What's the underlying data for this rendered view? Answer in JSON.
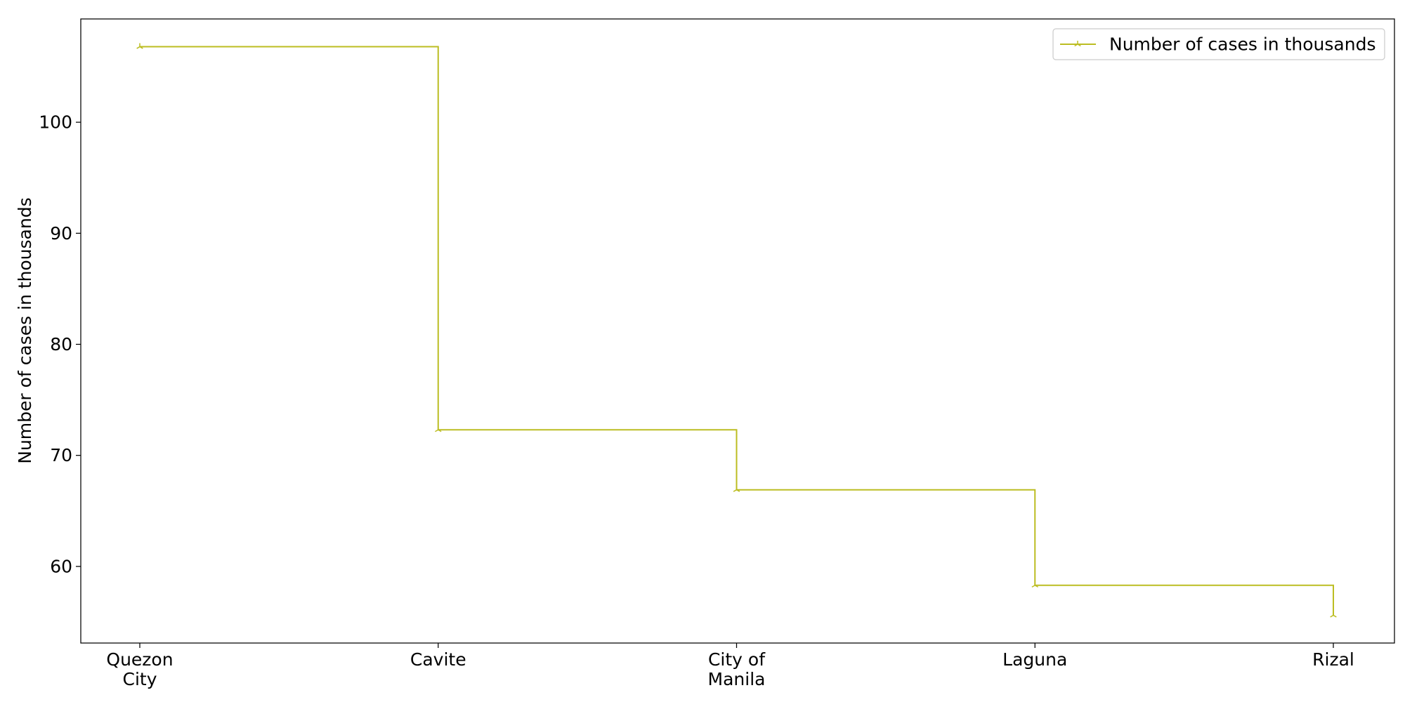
{
  "chart_data": {
    "type": "line",
    "step": "post",
    "categories": [
      "Quezon\nCity",
      "Cavite",
      "City of\nManila",
      "Laguna",
      "Rizal"
    ],
    "series": [
      {
        "name": "Number of cases in thousands",
        "values": [
          106.8,
          72.3,
          66.9,
          58.3,
          55.6
        ],
        "color": "#bcbd22",
        "marker": "tri_up"
      }
    ],
    "title": "",
    "xlabel": "",
    "ylabel": "Number of cases in thousands",
    "ylim": [
      53.1,
      109.3
    ],
    "yticks": [
      60,
      70,
      80,
      90,
      100
    ],
    "grid": false,
    "legend_position": "upper right"
  }
}
